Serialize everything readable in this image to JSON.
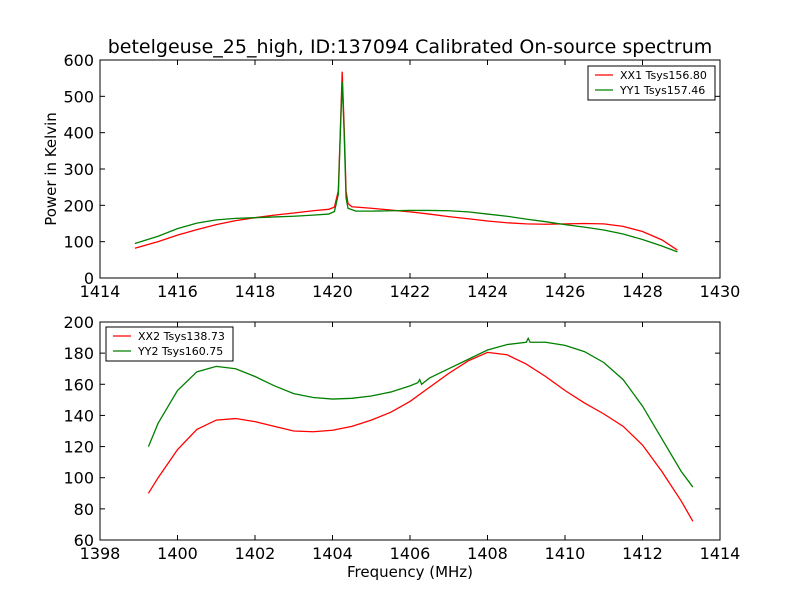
{
  "chart_data": [
    {
      "type": "line",
      "title": "betelgeuse_25_high, ID:137094 Calibrated On-source spectrum",
      "xlabel": "",
      "ylabel": "Power in Kelvin",
      "xlim": [
        1414,
        1430
      ],
      "ylim": [
        0,
        600
      ],
      "xticks": [
        1414,
        1416,
        1418,
        1420,
        1422,
        1424,
        1426,
        1428,
        1430
      ],
      "yticks": [
        0,
        100,
        200,
        300,
        400,
        500,
        600
      ],
      "grid": false,
      "legend": "top-right",
      "series": [
        {
          "name": "XX1 Tsys156.80",
          "color": "#ff0000",
          "points": [
            [
              1414.9,
              82
            ],
            [
              1415.5,
              100
            ],
            [
              1416,
              118
            ],
            [
              1416.5,
              133
            ],
            [
              1417,
              147
            ],
            [
              1417.5,
              158
            ],
            [
              1418,
              166
            ],
            [
              1418.5,
              173
            ],
            [
              1419,
              179
            ],
            [
              1419.5,
              185
            ],
            [
              1419.9,
              189
            ],
            [
              1420.05,
              195
            ],
            [
              1420.15,
              240
            ],
            [
              1420.2,
              400
            ],
            [
              1420.25,
              568
            ],
            [
              1420.3,
              420
            ],
            [
              1420.35,
              240
            ],
            [
              1420.4,
              205
            ],
            [
              1420.5,
              196
            ],
            [
              1421,
              192
            ],
            [
              1421.5,
              187
            ],
            [
              1422,
              182
            ],
            [
              1422.5,
              176
            ],
            [
              1423,
              169
            ],
            [
              1423.5,
              163
            ],
            [
              1424,
              157
            ],
            [
              1424.5,
              152
            ],
            [
              1425,
              149
            ],
            [
              1425.5,
              148
            ],
            [
              1426,
              149
            ],
            [
              1426.5,
              150
            ],
            [
              1427,
              149
            ],
            [
              1427.5,
              142
            ],
            [
              1428,
              128
            ],
            [
              1428.5,
              105
            ],
            [
              1428.9,
              77
            ]
          ]
        },
        {
          "name": "YY1 Tsys157.46",
          "color": "#008000",
          "points": [
            [
              1414.9,
              95
            ],
            [
              1415.5,
              115
            ],
            [
              1416,
              136
            ],
            [
              1416.5,
              151
            ],
            [
              1417,
              160
            ],
            [
              1417.5,
              164
            ],
            [
              1418,
              166
            ],
            [
              1418.5,
              168
            ],
            [
              1419,
              170
            ],
            [
              1419.5,
              173
            ],
            [
              1419.9,
              176
            ],
            [
              1420.05,
              183
            ],
            [
              1420.15,
              230
            ],
            [
              1420.2,
              390
            ],
            [
              1420.25,
              540
            ],
            [
              1420.3,
              400
            ],
            [
              1420.35,
              220
            ],
            [
              1420.4,
              192
            ],
            [
              1420.6,
              184
            ],
            [
              1421,
              184
            ],
            [
              1421.5,
              185
            ],
            [
              1422,
              186
            ],
            [
              1422.5,
              186
            ],
            [
              1423,
              185
            ],
            [
              1423.5,
              182
            ],
            [
              1424,
              176
            ],
            [
              1424.5,
              170
            ],
            [
              1425,
              162
            ],
            [
              1425.5,
              155
            ],
            [
              1426,
              147
            ],
            [
              1426.5,
              140
            ],
            [
              1427,
              132
            ],
            [
              1427.5,
              121
            ],
            [
              1428,
              106
            ],
            [
              1428.5,
              88
            ],
            [
              1428.9,
              72
            ]
          ]
        }
      ]
    },
    {
      "type": "line",
      "title": "",
      "xlabel": "Frequency (MHz)",
      "ylabel": "",
      "xlim": [
        1398,
        1414
      ],
      "ylim": [
        60,
        200
      ],
      "xticks": [
        1398,
        1400,
        1402,
        1404,
        1406,
        1408,
        1410,
        1412,
        1414
      ],
      "yticks": [
        60,
        80,
        100,
        120,
        140,
        160,
        180,
        200
      ],
      "grid": false,
      "legend": "top-left",
      "series": [
        {
          "name": "XX2 Tsys138.73",
          "color": "#ff0000",
          "points": [
            [
              1399.25,
              90
            ],
            [
              1399.5,
              100
            ],
            [
              1400,
              118
            ],
            [
              1400.5,
              131
            ],
            [
              1401,
              137
            ],
            [
              1401.5,
              138
            ],
            [
              1402,
              136
            ],
            [
              1402.5,
              133
            ],
            [
              1403,
              130
            ],
            [
              1403.5,
              129.5
            ],
            [
              1404,
              130.5
            ],
            [
              1404.5,
              133
            ],
            [
              1405,
              137
            ],
            [
              1405.5,
              142
            ],
            [
              1406,
              149
            ],
            [
              1406.5,
              158
            ],
            [
              1407,
              167
            ],
            [
              1407.5,
              175
            ],
            [
              1408,
              180.5
            ],
            [
              1408.5,
              179
            ],
            [
              1409,
              173
            ],
            [
              1409.5,
              165
            ],
            [
              1410,
              156
            ],
            [
              1410.5,
              148
            ],
            [
              1411,
              141
            ],
            [
              1411.5,
              133
            ],
            [
              1412,
              121
            ],
            [
              1412.5,
              104
            ],
            [
              1413,
              85
            ],
            [
              1413.3,
              72
            ]
          ]
        },
        {
          "name": "YY2 Tsys160.75",
          "color": "#008000",
          "points": [
            [
              1399.25,
              120
            ],
            [
              1399.5,
              135
            ],
            [
              1400,
              156
            ],
            [
              1400.5,
              168
            ],
            [
              1401,
              171.5
            ],
            [
              1401.5,
              170
            ],
            [
              1402,
              165
            ],
            [
              1402.5,
              159
            ],
            [
              1403,
              154
            ],
            [
              1403.5,
              151.5
            ],
            [
              1404,
              150.5
            ],
            [
              1404.5,
              151
            ],
            [
              1405,
              152.5
            ],
            [
              1405.5,
              155
            ],
            [
              1406,
              159
            ],
            [
              1406.2,
              161
            ],
            [
              1406.25,
              163
            ],
            [
              1406.3,
              160
            ],
            [
              1406.5,
              164
            ],
            [
              1407,
              170
            ],
            [
              1407.5,
              176
            ],
            [
              1408,
              182
            ],
            [
              1408.5,
              185.5
            ],
            [
              1409,
              187
            ],
            [
              1409.05,
              189.5
            ],
            [
              1409.1,
              187
            ],
            [
              1409.5,
              187
            ],
            [
              1410,
              185
            ],
            [
              1410.5,
              181
            ],
            [
              1411,
              174
            ],
            [
              1411.5,
              163
            ],
            [
              1412,
              146
            ],
            [
              1412.5,
              125
            ],
            [
              1413,
              104
            ],
            [
              1413.3,
              94
            ]
          ]
        }
      ]
    }
  ]
}
